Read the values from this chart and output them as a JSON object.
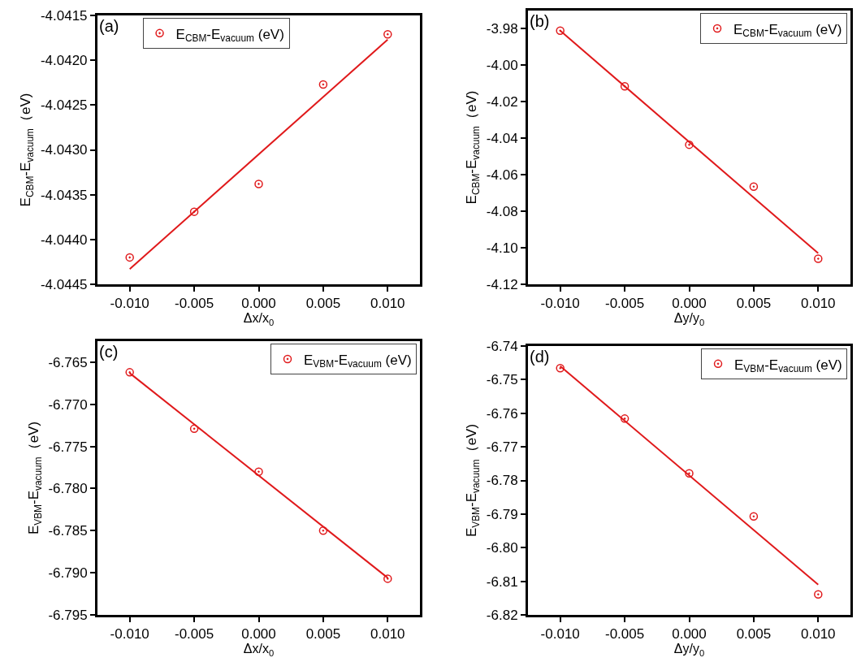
{
  "chart_data": [
    {
      "type": "scatter",
      "xlabel": "Δx/x$_{0}$",
      "ylabel": "E$_{CBM}$-E$_{vacuum}$（eV)",
      "xlim": [
        -0.0125,
        0.0125
      ],
      "xticks": [
        {
          "value": -0.01,
          "label": "-0.010"
        },
        {
          "value": -0.005,
          "label": "-0.005"
        },
        {
          "value": 0,
          "label": "0.000"
        },
        {
          "value": 0.005,
          "label": "0.005"
        },
        {
          "value": 0.01,
          "label": "0.010"
        }
      ],
      "ylim": [
        -4.0445,
        -4.0415
      ],
      "yticks": [
        -4.0445,
        {
          "value": -4.044,
          "label": "-4.0440"
        },
        -4.0435,
        {
          "value": -4.043,
          "label": "-4.0430"
        },
        -4.0425,
        {
          "value": -4.042,
          "label": "-4.0420"
        },
        -4.0415
      ],
      "grid": false,
      "legend": "top left",
      "annotations": [
        "(a)"
      ],
      "series": [
        {
          "type": "scatter",
          "marker": "circle",
          "name": "E$_{CBM}$-E$_{vacuum}$ (eV)",
          "color": "#e0191b",
          "x": [
            -0.01,
            -0.005,
            0,
            0.005,
            0.01
          ],
          "values": [
            -4.0442,
            -4.04369,
            -4.04338,
            -4.04227,
            -4.04171
          ]
        },
        {
          "type": "line",
          "color": "#e0191b",
          "line_style": "solid",
          "x": [
            -0.01,
            0.01
          ],
          "values": [
            -4.04433,
            -4.04177
          ]
        }
      ]
    },
    {
      "type": "scatter",
      "xlabel": "Δy/y$_{0}$",
      "ylabel": "E$_{CBM}$-E$_{vacuum}$（eV)",
      "xlim": [
        -0.0125,
        0.0125
      ],
      "xticks": [
        {
          "value": -0.01,
          "label": "-0.010"
        },
        {
          "value": -0.005,
          "label": "-0.005"
        },
        {
          "value": 0,
          "label": "0.000"
        },
        {
          "value": 0.005,
          "label": "0.005"
        },
        {
          "value": 0.01,
          "label": "0.010"
        }
      ],
      "ylim": [
        -4.12,
        -3.97
      ],
      "yticks": [
        -4.12,
        {
          "value": -4.1,
          "label": "-4.10"
        },
        -4.08,
        -4.06,
        -4.04,
        -4.02,
        {
          "value": -4,
          "label": "-4.00"
        },
        -3.98
      ],
      "grid": false,
      "legend": "top right",
      "annotations": [
        "(b)"
      ],
      "series": [
        {
          "type": "scatter",
          "marker": "circle",
          "name": "E$_{CBM}$-E$_{vacuum}$ (eV)",
          "color": "#e0191b",
          "x": [
            -0.01,
            -0.005,
            0,
            0.005,
            0.01
          ],
          "values": [
            -3.981,
            -4.0115,
            -4.0435,
            -4.0665,
            -4.106
          ]
        },
        {
          "type": "line",
          "color": "#e0191b",
          "line_style": "solid",
          "x": [
            -0.01,
            0.01
          ],
          "values": [
            -3.981,
            -4.103
          ]
        }
      ]
    },
    {
      "type": "scatter",
      "xlabel": "Δx/x$_{0}$",
      "ylabel": "E$_{VBM}$-E$_{vacuum}$（eV)",
      "xlim": [
        -0.0125,
        0.0125
      ],
      "xticks": [
        {
          "value": -0.01,
          "label": "-0.010"
        },
        {
          "value": -0.005,
          "label": "-0.005"
        },
        {
          "value": 0,
          "label": "0.000"
        },
        {
          "value": 0.005,
          "label": "0.005"
        },
        {
          "value": 0.01,
          "label": "0.010"
        }
      ],
      "ylim": [
        -6.795,
        -6.7625
      ],
      "yticks": [
        -6.795,
        {
          "value": -6.79,
          "label": "-6.790"
        },
        -6.785,
        {
          "value": -6.78,
          "label": "-6.780"
        },
        -6.775,
        {
          "value": -6.77,
          "label": "-6.770"
        },
        -6.765
      ],
      "grid": false,
      "legend": "top right",
      "annotations": [
        "(c)"
      ],
      "series": [
        {
          "type": "scatter",
          "marker": "circle",
          "name": "E$_{VBM}$-E$_{vacuum}$ (eV)",
          "color": "#e0191b",
          "x": [
            -0.01,
            -0.005,
            0,
            0.005,
            0.01
          ],
          "values": [
            -6.7662,
            -6.7729,
            -6.778,
            -6.785,
            -6.7907
          ]
        },
        {
          "type": "line",
          "color": "#e0191b",
          "line_style": "solid",
          "x": [
            -0.01,
            0.01
          ],
          "values": [
            -6.7663,
            -6.7906
          ]
        }
      ]
    },
    {
      "type": "scatter",
      "xlabel": "Δy/y$_{0}$",
      "ylabel": "E$_{VBM}$-E$_{vacuum}$（eV)",
      "xlim": [
        -0.0125,
        0.0125
      ],
      "xticks": [
        {
          "value": -0.01,
          "label": "-0.010"
        },
        {
          "value": -0.005,
          "label": "-0.005"
        },
        {
          "value": 0,
          "label": "0.000"
        },
        {
          "value": 0.005,
          "label": "0.005"
        },
        {
          "value": 0.01,
          "label": "0.010"
        }
      ],
      "ylim": [
        -6.82,
        -6.74
      ],
      "yticks": [
        -6.82,
        -6.81,
        {
          "value": -6.8,
          "label": "-6.80"
        },
        -6.79,
        -6.78,
        -6.77,
        -6.76,
        -6.75,
        -6.74
      ],
      "grid": false,
      "legend": "top right",
      "annotations": [
        "(d)"
      ],
      "series": [
        {
          "type": "scatter",
          "marker": "circle",
          "name": "E$_{VBM}$-E$_{vacuum}$ (eV)",
          "color": "#e0191b",
          "x": [
            -0.01,
            -0.005,
            0,
            0.005,
            0.01
          ],
          "values": [
            -6.7466,
            -6.7616,
            -6.7779,
            -6.7907,
            -6.8139
          ]
        },
        {
          "type": "line",
          "color": "#e0191b",
          "line_style": "solid",
          "x": [
            -0.01,
            0.01
          ],
          "values": [
            -6.746,
            -6.811
          ]
        }
      ]
    }
  ]
}
